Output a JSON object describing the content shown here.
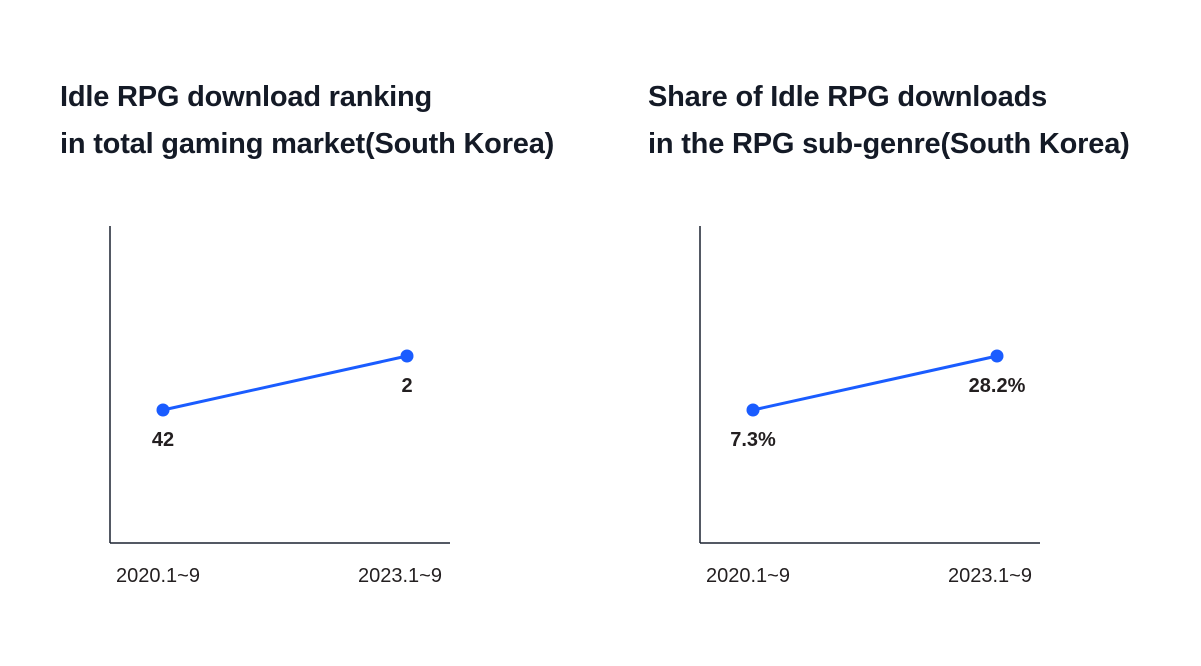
{
  "chart_data": [
    {
      "type": "line",
      "title": [
        "Idle RPG download ranking",
        "in total gaming market(South Korea)"
      ],
      "categories": [
        "2020.1~9",
        "2023.1~9"
      ],
      "values": [
        42,
        2
      ],
      "data_labels": [
        "42",
        "2"
      ],
      "y_inverted": true,
      "grid": false,
      "color": "#1a5cff"
    },
    {
      "type": "line",
      "title": [
        "Share of Idle RPG downloads",
        "in the RPG sub-genre(South Korea)"
      ],
      "categories": [
        "2020.1~9",
        "2023.1~9"
      ],
      "values": [
        7.3,
        28.2
      ],
      "data_labels": [
        "7.3%",
        "28.2%"
      ],
      "y_inverted": false,
      "grid": false,
      "color": "#1a5cff"
    }
  ]
}
